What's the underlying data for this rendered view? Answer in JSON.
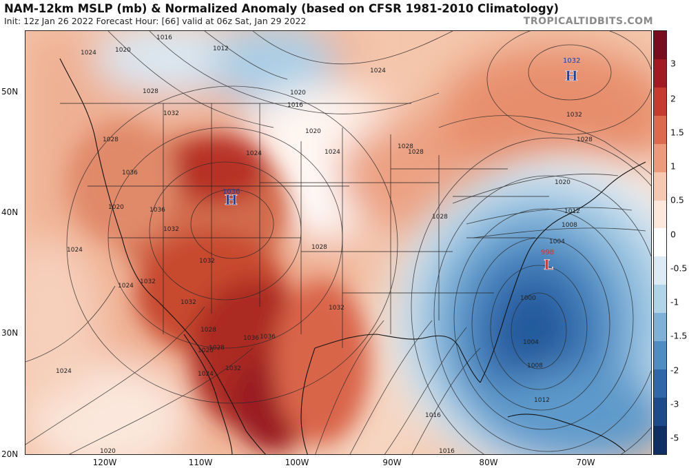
{
  "header": {
    "title": "NAM-12km MSLP (mb) & Normalized Anomaly (based on CFSR 1981-2010 Climatology)",
    "subtitle": "Init: 12z Jan 26 2022   Forecast Hour: [66]   valid at 06z Sat, Jan 29 2022",
    "brand": "TROPICALTIDBITS.COM"
  },
  "axes": {
    "lat_labels": [
      "50N",
      "40N",
      "30N",
      "20N"
    ],
    "lon_labels": [
      "120W",
      "110W",
      "100W",
      "90W",
      "80W",
      "70W"
    ]
  },
  "colorbar": {
    "labels": [
      "3",
      "2",
      "1.5",
      "1",
      "0.5",
      "0",
      "-0.5",
      "-1",
      "-1.5",
      "-2",
      "-3",
      "-5"
    ],
    "colors": [
      "#7a0c1f",
      "#a31a22",
      "#c63a30",
      "#dd6a4e",
      "#ec9a7b",
      "#f6c8b1",
      "#fde8dc",
      "#ffffff",
      "#dceaf4",
      "#b1d3e7",
      "#7fb1d6",
      "#4f8cc2",
      "#2f67a8",
      "#1c4a8a",
      "#0f2f63"
    ]
  },
  "map": {
    "high_centers": [
      {
        "label": "H",
        "value": "1036"
      },
      {
        "label": "H",
        "value": "1032"
      }
    ],
    "low_centers": [
      {
        "label": "L",
        "value": "998"
      }
    ],
    "isobar_labels": [
      "1016",
      "1012",
      "1024",
      "1020",
      "1028",
      "1032",
      "1016",
      "1020",
      "1024",
      "1028",
      "1024",
      "1028",
      "1032",
      "1036",
      "1028",
      "1024",
      "1028",
      "1032",
      "1036",
      "1032",
      "1028",
      "1024",
      "1028",
      "1020",
      "1012",
      "1008",
      "1004",
      "1000",
      "1004",
      "1008",
      "1012",
      "1016",
      "1020",
      "1032",
      "1024",
      "1028",
      "1036",
      "1032",
      "1028",
      "1024",
      "1020",
      "1024",
      "1020",
      "1032",
      "1036",
      "1032",
      "1020",
      "1016"
    ]
  }
}
